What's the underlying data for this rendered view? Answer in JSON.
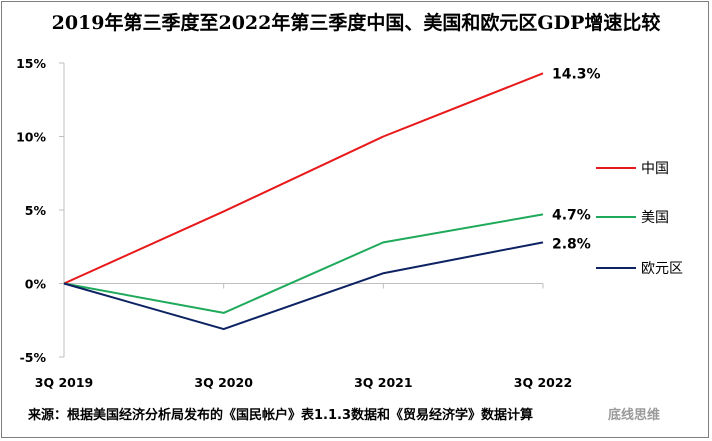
{
  "chart_data": {
    "type": "line",
    "title": "2019年第三季度至2022年第三季度中国、美国和欧元区GDP增速比较",
    "categories": [
      "3Q 2019",
      "3Q 2020",
      "3Q 2021",
      "3Q 2022"
    ],
    "ylim": [
      -5,
      15
    ],
    "yticks": [
      "-5%",
      "0%",
      "5%",
      "10%",
      "15%"
    ],
    "ytick_values": [
      -5,
      0,
      5,
      10,
      15
    ],
    "grid": false,
    "legend_position": "right",
    "series": [
      {
        "name": "中国",
        "color": "#e8191b",
        "values": [
          0,
          4.9,
          10.0,
          14.3
        ],
        "end_label": "14.3%"
      },
      {
        "name": "美国",
        "color": "#1faa5b",
        "values": [
          0,
          -2.0,
          2.8,
          4.7
        ],
        "end_label": "4.7%"
      },
      {
        "name": "欧元区",
        "color": "#0d2263",
        "values": [
          0,
          -3.1,
          0.7,
          2.8
        ],
        "end_label": "2.8%"
      }
    ]
  },
  "footer": {
    "source": "来源：根据美国经济分析局发布的《国民帐户》表1.1.3数据和《贸易经济学》数据计算",
    "watermark": "底线思维"
  }
}
